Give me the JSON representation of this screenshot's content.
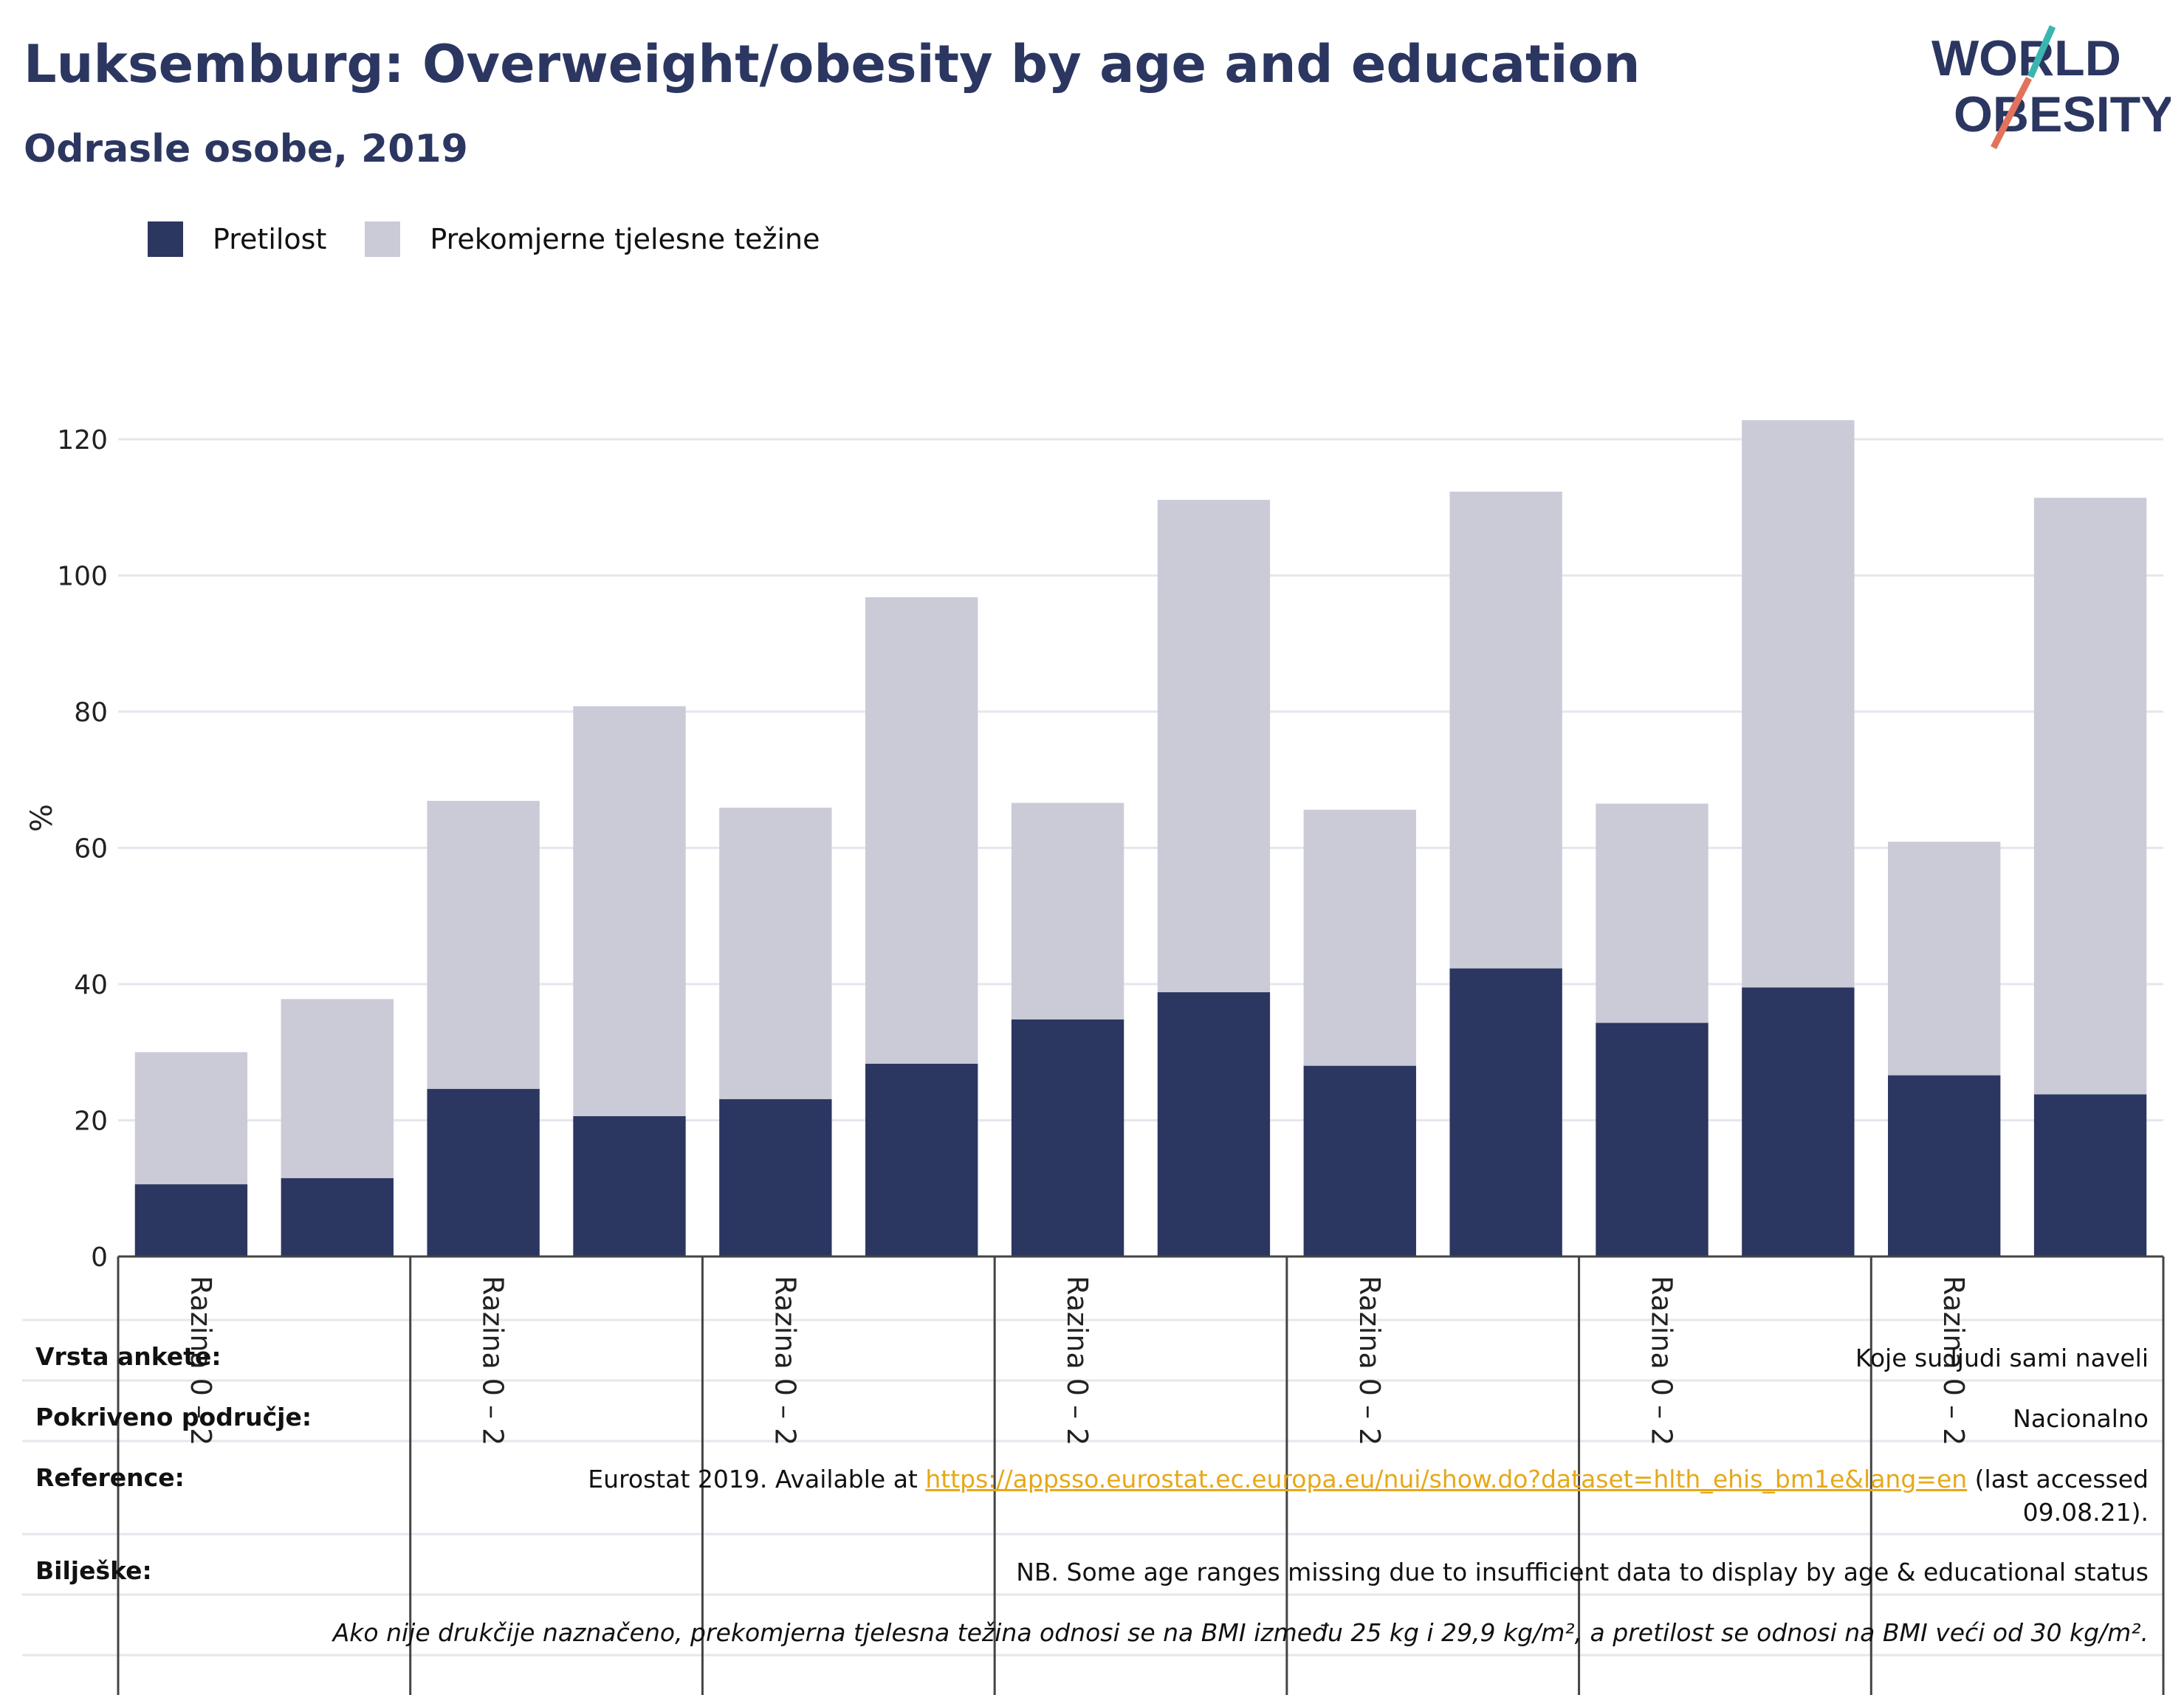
{
  "header": {
    "title": "Luksemburg: Overweight/obesity by age and education",
    "subtitle": "Odrasle osobe, 2019"
  },
  "logo": {
    "line1": "WORLD",
    "line2": "OBESITY"
  },
  "colors": {
    "obesity": "#2b3661",
    "overweight": "#cacbd7",
    "title": "#2b3661",
    "grid": "#e6e6ee",
    "link": "#e6a817"
  },
  "chart_data": {
    "type": "bar",
    "stacked": true,
    "ylabel": "%",
    "ylim": [
      0,
      125
    ],
    "yticks": [
      0,
      20,
      40,
      60,
      80,
      100,
      120
    ],
    "grid": true,
    "legend_position": "top-left",
    "group_labels": [
      "Razina 0 – 2",
      "Razina 0 – 2",
      "Razina 0 – 2",
      "Razina 0 – 2",
      "Razina 0 – 2",
      "Razina 0 – 2",
      "Razina 0 – 2"
    ],
    "series": [
      {
        "name": "Pretilost",
        "values": [
          10.6,
          11.5,
          24.6,
          20.6,
          23.1,
          28.3,
          34.8,
          38.8,
          28.0,
          42.3,
          34.3,
          39.5,
          26.6,
          23.8
        ]
      },
      {
        "name": "Prekomjerne tjelesne težine",
        "values": [
          19.4,
          26.3,
          42.3,
          60.2,
          42.8,
          68.5,
          31.8,
          72.3,
          37.6,
          70.0,
          32.2,
          83.3,
          34.3,
          87.6
        ]
      }
    ]
  },
  "info": {
    "survey_type_label": "Vrsta ankete:",
    "survey_type_value": "Koje su ljudi sami naveli",
    "coverage_label": "Pokriveno područje:",
    "coverage_value": "Nacionalno",
    "reference_label": "Reference:",
    "reference_prefix": "Eurostat 2019. Available at ",
    "reference_link": "https://appsso.eurostat.ec.europa.eu/nui/show.do?dataset=hlth_ehis_bm1e&lang=en",
    "reference_suffix": " (last accessed",
    "reference_date": "09.08.21).",
    "notes_label": "Bilješke:",
    "notes_value": "NB. Some age ranges missing due to insufficient data to display by age & educational status",
    "definition_note": "Ako nije drukčije naznačeno, prekomjerna tjelesna težina odnosi se na BMI između 25 kg i 29,9 kg/m², a pretilost se odnosi na BMI veći od 30 kg/m²."
  }
}
